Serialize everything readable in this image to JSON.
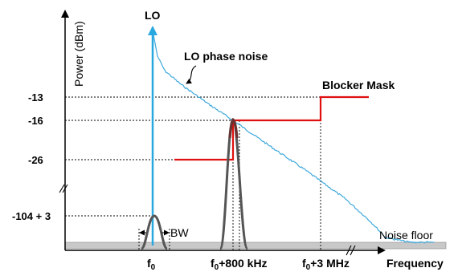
{
  "y_axis_label": "Power (dBm)",
  "x_axis_label": "Frequency",
  "y_ticks": [
    "-13",
    "-16",
    "-26",
    "-104 + 3"
  ],
  "x_ticks": {
    "f0": {
      "base": "f",
      "sub": "0",
      "suffix": ""
    },
    "f800": {
      "base": "f",
      "sub": "0",
      "suffix": "+800 kHz"
    },
    "f3": {
      "base": "f",
      "sub": "0",
      "suffix": "+3 MHz"
    }
  },
  "labels": {
    "lo": "LO",
    "phase_noise": "LO phase noise",
    "blocker_mask": "Blocker Mask",
    "noise_floor": "Noise floor",
    "bw": "BW"
  },
  "colors": {
    "lo_arrow": "#29a8e0",
    "phase_noise": "#3fa9dd",
    "blocker_mask": "#e01010",
    "signal": "#555555",
    "blocker_signal": "#6b3030",
    "noise_floor": "#c8c8c8"
  }
}
